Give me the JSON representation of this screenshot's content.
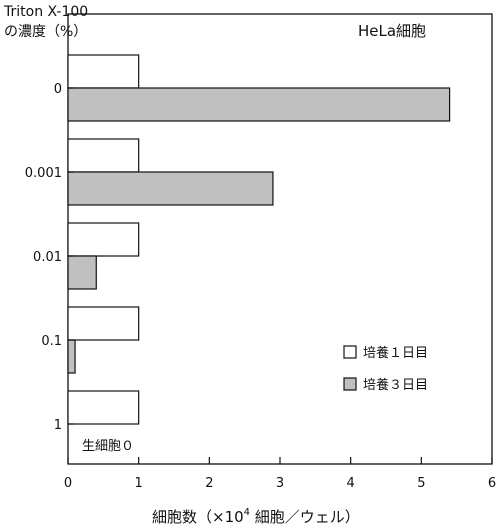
{
  "chart_data": {
    "type": "bar",
    "orientation": "horizontal",
    "title": "HeLa細胞",
    "ylabel_line1": "Triton X-100",
    "ylabel_line2": "の濃度（%）",
    "xlabel": "細胞数（×10",
    "xlabel_sup": "4",
    "xlabel_tail": " 細胞／ウェル）",
    "categories": [
      "0",
      "0.001",
      "0.01",
      "0.1",
      "1"
    ],
    "xlim": [
      0,
      6
    ],
    "xticks": [
      "0",
      "1",
      "2",
      "3",
      "4",
      "5",
      "6"
    ],
    "series": [
      {
        "name": "培養１日目",
        "values": [
          1,
          1,
          1,
          1,
          1
        ],
        "color": "#ffffff"
      },
      {
        "name": "培養３日目",
        "values": [
          5.4,
          2.9,
          0.4,
          0.1,
          0
        ],
        "color": "#c0c0c0"
      }
    ],
    "legend_position": "lower-right",
    "annotation": "生細胞０"
  }
}
